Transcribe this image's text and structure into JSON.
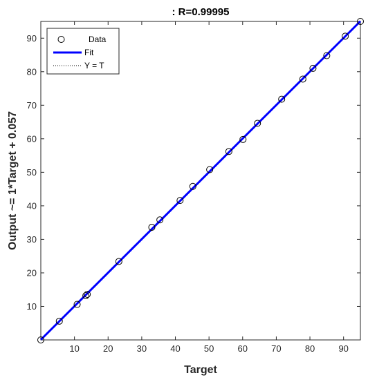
{
  "chart_data": {
    "type": "scatter",
    "title": ": R=0.99995",
    "xlabel": "Target",
    "ylabel": "Output ~= 1*Target + 0.057",
    "xlim": [
      0,
      95
    ],
    "ylim": [
      0,
      95
    ],
    "xticks": [
      10,
      20,
      30,
      40,
      50,
      60,
      70,
      80,
      90
    ],
    "yticks": [
      10,
      20,
      30,
      40,
      50,
      60,
      70,
      80,
      90
    ],
    "grid": false,
    "legend_position": "top-left",
    "series": [
      {
        "name": "Data",
        "marker": "circle",
        "color": "#000000",
        "points": [
          [
            0,
            0
          ],
          [
            5.5,
            5.6
          ],
          [
            10.8,
            10.6
          ],
          [
            13.4,
            13.2
          ],
          [
            13.8,
            13.6
          ],
          [
            23.2,
            23.4
          ],
          [
            33.0,
            33.6
          ],
          [
            35.4,
            35.8
          ],
          [
            41.4,
            41.6
          ],
          [
            45.2,
            45.8
          ],
          [
            50.2,
            50.8
          ],
          [
            55.9,
            56.2
          ],
          [
            60.1,
            59.8
          ],
          [
            64.4,
            64.6
          ],
          [
            71.6,
            71.8
          ],
          [
            77.9,
            77.8
          ],
          [
            80.9,
            81.0
          ],
          [
            85.0,
            84.8
          ],
          [
            90.5,
            90.6
          ],
          [
            95.0,
            95.0
          ]
        ]
      },
      {
        "name": "Fit",
        "style": "solid",
        "color": "#0000ff",
        "slope": 1,
        "intercept": 0.057
      },
      {
        "name": "Y = T",
        "style": "dotted",
        "color": "#000000",
        "slope": 1,
        "intercept": 0
      }
    ]
  }
}
